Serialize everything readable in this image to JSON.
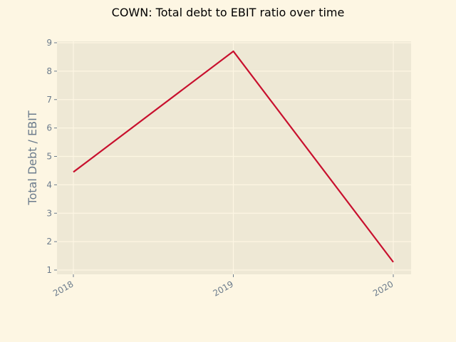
{
  "chart_data": {
    "type": "line",
    "title": "COWN: Total debt to EBIT ratio over time",
    "xlabel": "",
    "ylabel": "Total Debt / EBIT",
    "categories": [
      "2018",
      "2019",
      "2020"
    ],
    "series": [
      {
        "values": [
          4.45,
          8.7,
          1.28
        ]
      }
    ],
    "ylim": [
      0.85,
      9.05
    ],
    "yticks": [
      "1",
      "2",
      "3",
      "4",
      "5",
      "6",
      "7",
      "8",
      "9"
    ],
    "grid": true,
    "legend": "none"
  },
  "colors": {
    "background": "#fdf6e3",
    "plot_area": "#eee8d5",
    "grid": "#fdf6e3",
    "line": "#c8102e",
    "text": "#6b7b8c"
  }
}
